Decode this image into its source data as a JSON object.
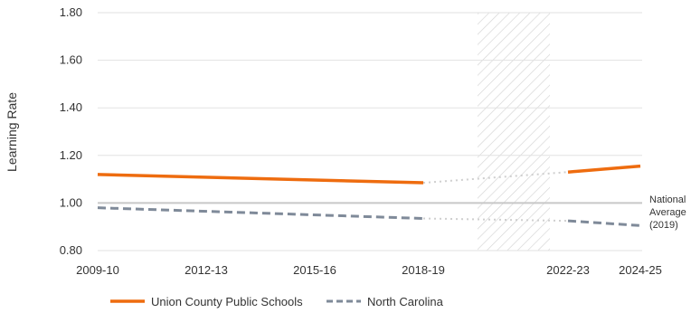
{
  "chart_data": {
    "type": "line",
    "title": "",
    "xlabel": "",
    "ylabel": "Learning Rate",
    "x_ticks": [
      "2009-10",
      "2012-13",
      "2015-16",
      "2018-19",
      "2022-23",
      "2024-25"
    ],
    "ylim": [
      0.8,
      1.8
    ],
    "y_ticks": [
      "0.80",
      "1.00",
      "1.20",
      "1.40",
      "1.60",
      "1.80"
    ],
    "grid": "horizontal",
    "gap_period": {
      "start": 2019.5,
      "end": 2021.5,
      "pattern": "diagonal hatch"
    },
    "reference_line": {
      "value": 1.0,
      "label_lines": [
        "National",
        "Average",
        "(2019)"
      ]
    },
    "series": [
      {
        "name": "Union County Public Schools",
        "color": "#ee6c0f",
        "style": "solid",
        "segments": [
          {
            "x": [
              2009,
              2018
            ],
            "y": [
              1.12,
              1.085
            ]
          },
          {
            "x": [
              2022,
              2024
            ],
            "y": [
              1.13,
              1.155
            ]
          }
        ],
        "connector": {
          "x": [
            2018,
            2022
          ],
          "y": [
            1.085,
            1.13
          ]
        }
      },
      {
        "name": "North Carolina",
        "color": "#7f8a99",
        "style": "dashed",
        "segments": [
          {
            "x": [
              2009,
              2018
            ],
            "y": [
              0.98,
              0.935
            ]
          },
          {
            "x": [
              2022,
              2024
            ],
            "y": [
              0.925,
              0.905
            ]
          }
        ],
        "connector": {
          "x": [
            2018,
            2022
          ],
          "y": [
            0.935,
            0.925
          ]
        }
      }
    ],
    "legend_position": "bottom-left",
    "colors": {
      "grid": "#e2e2e2",
      "reference": "#c8c8c8",
      "connector": "#cfcfcf",
      "hatch": "#d4d4d4",
      "text": "#333333"
    }
  }
}
